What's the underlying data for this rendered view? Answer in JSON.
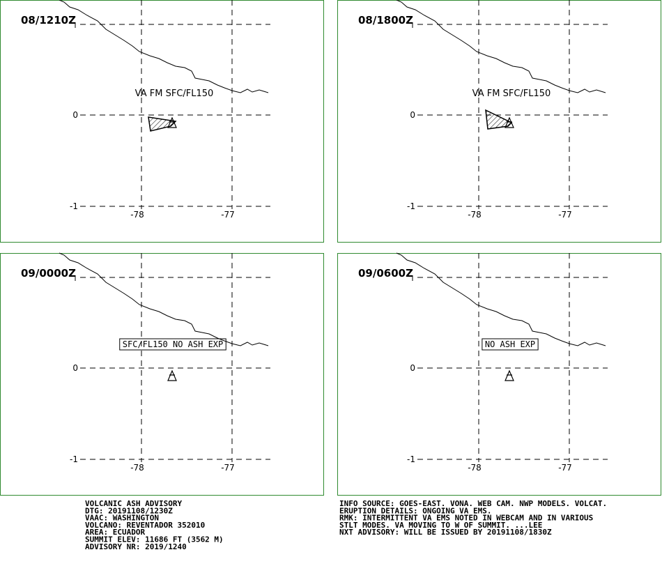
{
  "grid": {
    "lat_labels": [
      "0",
      "-1"
    ],
    "lon_labels": [
      "-78",
      "-77"
    ]
  },
  "panels": [
    {
      "time": "08/1210Z",
      "annotation": "VA FM SFC/FL150"
    },
    {
      "time": "08/1800Z",
      "annotation": "VA FM SFC/FL150"
    },
    {
      "time": "09/0000Z",
      "annotation": "SFC/FL150 NO ASH EXP"
    },
    {
      "time": "09/0600Z",
      "annotation": "NO ASH EXP"
    }
  ],
  "footer_left": [
    "VOLCANIC ASH ADVISORY",
    "DTG: 20191108/1230Z",
    "VAAC: WASHINGTON",
    "VOLCANO: REVENTADOR 352010",
    "AREA: ECUADOR",
    "SUMMIT ELEV: 11686 FT (3562 M)",
    "ADVISORY NR: 2019/1240"
  ],
  "footer_right": [
    "INFO SOURCE: GOES-EAST. VONA. WEB CAM. NWP MODELS. VOLCAT.",
    "ERUPTION DETAILS: ONGOING VA EMS.",
    "RMK: INTERMITTENT VA EMS NOTED IN WEBCAM AND IN VARIOUS",
    "STLT MODES. VA MOVING TO W OF SUMMIT. ...LEE",
    "NXT ADVISORY: WILL BE ISSUED BY 20191108/1830Z"
  ]
}
